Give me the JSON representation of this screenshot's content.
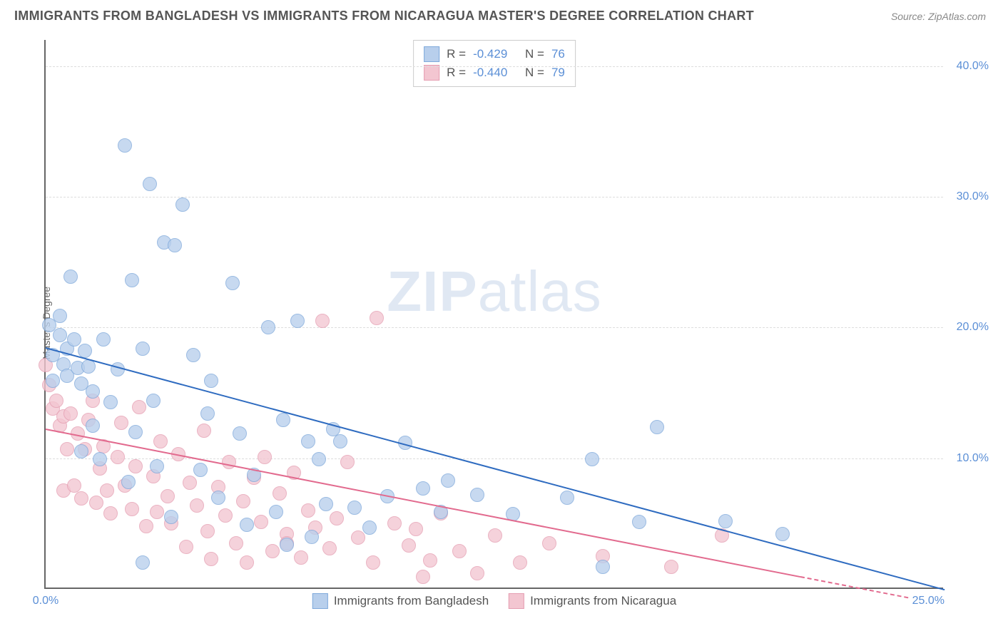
{
  "title": "IMMIGRANTS FROM BANGLADESH VS IMMIGRANTS FROM NICARAGUA MASTER'S DEGREE CORRELATION CHART",
  "source": "Source: ZipAtlas.com",
  "ylabel": "Master's Degree",
  "watermark_a": "ZIP",
  "watermark_b": "atlas",
  "chart": {
    "type": "scatter",
    "xlim": [
      0,
      25
    ],
    "ylim": [
      0,
      42
    ],
    "ytick_step": 10,
    "yticks": [
      10,
      20,
      30,
      40
    ],
    "ytick_labels": [
      "10.0%",
      "20.0%",
      "30.0%",
      "40.0%"
    ],
    "xticks": [
      0,
      25
    ],
    "xtick_labels": [
      "0.0%",
      "25.0%"
    ],
    "grid_color": "#dddddd",
    "axis_color": "#666666",
    "tick_color": "#5b8fd6"
  },
  "series": {
    "a": {
      "label": "Immigrants from Bangladesh",
      "r_label": "R =",
      "r_value": "-0.429",
      "n_label": "N =",
      "n_value": "76",
      "marker_fill": "#b8cfec",
      "marker_stroke": "#7fa9db",
      "marker_opacity": 0.78,
      "marker_r": 10,
      "trend_color": "#2e6bc0",
      "trend": {
        "x1": 0.0,
        "y1": 18.5,
        "x2": 25.0,
        "y2": 0.0
      },
      "points": [
        [
          0.1,
          21.3
        ],
        [
          0.2,
          19.0
        ],
        [
          0.2,
          17.0
        ],
        [
          0.4,
          20.5
        ],
        [
          0.4,
          22.0
        ],
        [
          0.5,
          18.3
        ],
        [
          0.6,
          17.4
        ],
        [
          0.6,
          19.5
        ],
        [
          0.7,
          25.0
        ],
        [
          0.8,
          20.2
        ],
        [
          0.9,
          18.0
        ],
        [
          1.0,
          11.6
        ],
        [
          1.0,
          16.8
        ],
        [
          1.1,
          19.3
        ],
        [
          1.2,
          18.1
        ],
        [
          1.3,
          16.2
        ],
        [
          1.3,
          13.6
        ],
        [
          1.5,
          11.0
        ],
        [
          1.6,
          20.2
        ],
        [
          1.8,
          15.4
        ],
        [
          2.0,
          17.9
        ],
        [
          2.2,
          35.0
        ],
        [
          2.3,
          9.3
        ],
        [
          2.4,
          24.7
        ],
        [
          2.5,
          13.1
        ],
        [
          2.7,
          19.5
        ],
        [
          2.7,
          3.1
        ],
        [
          2.9,
          32.1
        ],
        [
          3.0,
          15.5
        ],
        [
          3.1,
          10.5
        ],
        [
          3.3,
          27.6
        ],
        [
          3.5,
          6.6
        ],
        [
          3.6,
          27.4
        ],
        [
          3.8,
          30.5
        ],
        [
          4.1,
          19.0
        ],
        [
          4.3,
          10.2
        ],
        [
          4.5,
          14.5
        ],
        [
          4.6,
          17.0
        ],
        [
          4.8,
          8.1
        ],
        [
          5.2,
          24.5
        ],
        [
          5.4,
          13.0
        ],
        [
          5.6,
          6.0
        ],
        [
          5.8,
          9.8
        ],
        [
          6.2,
          21.1
        ],
        [
          6.4,
          7.0
        ],
        [
          6.6,
          14.0
        ],
        [
          6.7,
          4.5
        ],
        [
          7.0,
          21.6
        ],
        [
          7.3,
          12.4
        ],
        [
          7.4,
          5.1
        ],
        [
          7.6,
          11.0
        ],
        [
          7.8,
          7.6
        ],
        [
          8.0,
          13.3
        ],
        [
          8.2,
          12.4
        ],
        [
          8.6,
          7.3
        ],
        [
          9.0,
          5.8
        ],
        [
          9.5,
          8.2
        ],
        [
          10.0,
          12.3
        ],
        [
          10.5,
          8.8
        ],
        [
          11.0,
          7.0
        ],
        [
          11.2,
          9.4
        ],
        [
          12.0,
          8.3
        ],
        [
          13.0,
          6.8
        ],
        [
          14.5,
          8.1
        ],
        [
          15.2,
          11.0
        ],
        [
          15.5,
          2.8
        ],
        [
          16.5,
          6.2
        ],
        [
          17.0,
          13.5
        ],
        [
          18.9,
          6.3
        ],
        [
          20.5,
          5.3
        ]
      ]
    },
    "b": {
      "label": "Immigrants from Nicaragua",
      "r_label": "R =",
      "r_value": "-0.440",
      "n_label": "N =",
      "n_value": "79",
      "marker_fill": "#f3c6d1",
      "marker_stroke": "#e59eb2",
      "marker_opacity": 0.78,
      "marker_r": 10,
      "trend_color": "#e26a8e",
      "trend": {
        "x1": 0.0,
        "y1": 12.3,
        "x2": 21.0,
        "y2": 1.0
      },
      "trend_dash": {
        "x1": 21.0,
        "y1": 1.0,
        "x2": 24.0,
        "y2": -0.6
      },
      "points": [
        [
          0.0,
          18.2
        ],
        [
          0.1,
          16.7
        ],
        [
          0.2,
          14.9
        ],
        [
          0.3,
          15.5
        ],
        [
          0.4,
          13.6
        ],
        [
          0.5,
          8.6
        ],
        [
          0.5,
          14.3
        ],
        [
          0.6,
          11.8
        ],
        [
          0.7,
          14.5
        ],
        [
          0.8,
          9.0
        ],
        [
          0.9,
          13.0
        ],
        [
          1.0,
          8.0
        ],
        [
          1.1,
          11.8
        ],
        [
          1.2,
          14.0
        ],
        [
          1.3,
          15.5
        ],
        [
          1.4,
          7.7
        ],
        [
          1.5,
          10.3
        ],
        [
          1.6,
          12.0
        ],
        [
          1.7,
          8.6
        ],
        [
          1.8,
          6.9
        ],
        [
          2.0,
          11.2
        ],
        [
          2.1,
          13.8
        ],
        [
          2.2,
          9.0
        ],
        [
          2.4,
          7.2
        ],
        [
          2.5,
          10.5
        ],
        [
          2.6,
          15.0
        ],
        [
          2.8,
          5.9
        ],
        [
          3.0,
          9.7
        ],
        [
          3.1,
          7.0
        ],
        [
          3.2,
          12.4
        ],
        [
          3.4,
          8.2
        ],
        [
          3.5,
          6.1
        ],
        [
          3.7,
          11.4
        ],
        [
          3.9,
          4.3
        ],
        [
          4.0,
          9.2
        ],
        [
          4.2,
          7.5
        ],
        [
          4.4,
          13.2
        ],
        [
          4.5,
          5.5
        ],
        [
          4.6,
          3.4
        ],
        [
          4.8,
          8.9
        ],
        [
          5.0,
          6.7
        ],
        [
          5.1,
          10.8
        ],
        [
          5.3,
          4.6
        ],
        [
          5.5,
          7.8
        ],
        [
          5.6,
          3.1
        ],
        [
          5.8,
          9.6
        ],
        [
          6.0,
          6.2
        ],
        [
          6.1,
          11.2
        ],
        [
          6.3,
          4.0
        ],
        [
          6.5,
          8.4
        ],
        [
          6.7,
          5.3
        ],
        [
          6.7,
          4.6
        ],
        [
          6.9,
          10.0
        ],
        [
          7.1,
          3.5
        ],
        [
          7.3,
          7.1
        ],
        [
          7.5,
          5.8
        ],
        [
          7.7,
          21.6
        ],
        [
          7.9,
          4.2
        ],
        [
          8.1,
          6.5
        ],
        [
          8.4,
          10.8
        ],
        [
          8.7,
          5.0
        ],
        [
          9.1,
          3.1
        ],
        [
          9.2,
          21.8
        ],
        [
          9.7,
          6.1
        ],
        [
          10.1,
          4.4
        ],
        [
          10.3,
          5.7
        ],
        [
          10.5,
          2.0
        ],
        [
          10.7,
          3.3
        ],
        [
          11.0,
          6.9
        ],
        [
          11.5,
          4.0
        ],
        [
          12.0,
          2.3
        ],
        [
          12.5,
          5.2
        ],
        [
          13.2,
          3.1
        ],
        [
          14.0,
          4.6
        ],
        [
          15.5,
          3.6
        ],
        [
          17.4,
          2.8
        ],
        [
          18.8,
          5.2
        ]
      ]
    }
  }
}
